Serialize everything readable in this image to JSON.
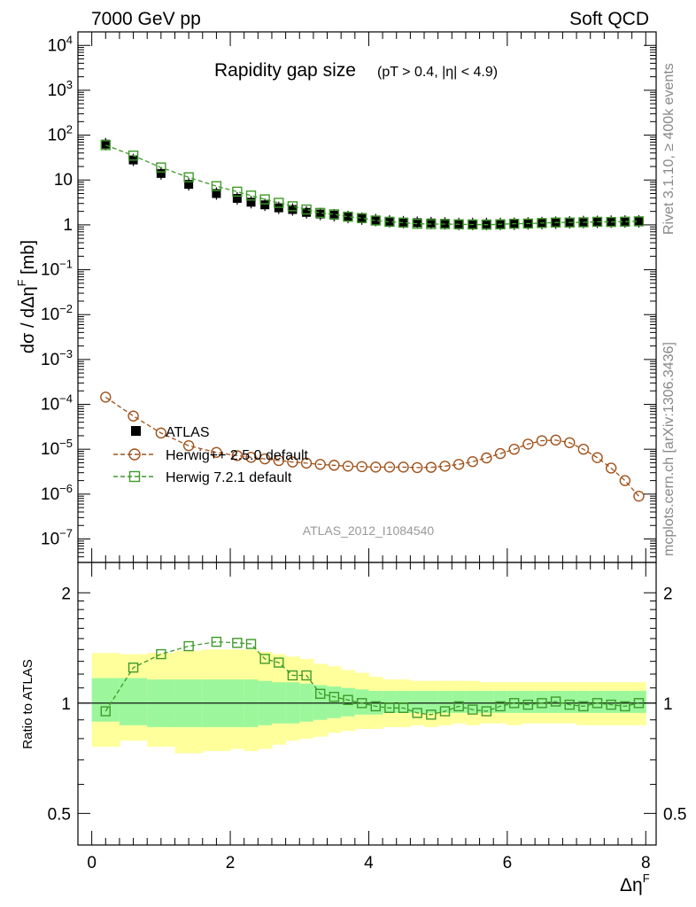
{
  "header": {
    "left": "7000 GeV pp",
    "right": "Soft QCD"
  },
  "side_labels": {
    "rivet": "Rivet 3.1.10, ≥ 400k events",
    "mcplots": "mcplots.cern.ch [arXiv:1306.3436]"
  },
  "colors": {
    "atlas": "#000000",
    "herwigpp": "#a0521b",
    "herwig7": "#3f9a2a",
    "band_inner": "#9cf79c",
    "band_outer": "#ffff9c"
  },
  "chart_data": [
    {
      "type": "scatter",
      "title": "Rapidity gap size",
      "subtitle": "(pT > 0.4, |η| < 4.9)",
      "ylabel": "dσ / dΔηF [mb]",
      "xlabel": "ΔηF",
      "yscale": "log",
      "xlim": [
        -0.2,
        8.15
      ],
      "ylim": [
        3e-08,
        20000
      ],
      "ytick_labels": [
        "10^4",
        "10^3",
        "10^2",
        "10",
        "1",
        "10^-1",
        "10^-2",
        "10^-3",
        "10^-4",
        "10^-5",
        "10^-6",
        "10^-7"
      ],
      "analysis_label": "ATLAS_2012_I1084540",
      "legend": [
        "ATLAS",
        "Herwig++ 2.5.0 default",
        "Herwig 7.2.1 default"
      ],
      "legend_position": "lower-left",
      "x": [
        0.2,
        0.6,
        1.0,
        1.4,
        1.8,
        2.1,
        2.3,
        2.5,
        2.7,
        2.9,
        3.1,
        3.3,
        3.5,
        3.7,
        3.9,
        4.1,
        4.3,
        4.5,
        4.7,
        4.9,
        5.1,
        5.3,
        5.5,
        5.7,
        5.9,
        6.1,
        6.3,
        6.5,
        6.7,
        6.9,
        7.1,
        7.3,
        7.5,
        7.7,
        7.9
      ],
      "series": [
        {
          "name": "ATLAS",
          "marker": "filled-square",
          "values": [
            63,
            28,
            14,
            8,
            5,
            3.9,
            3.2,
            2.8,
            2.4,
            2.2,
            1.9,
            1.75,
            1.65,
            1.5,
            1.38,
            1.28,
            1.2,
            1.15,
            1.12,
            1.1,
            1.08,
            1.05,
            1.05,
            1.05,
            1.05,
            1.06,
            1.08,
            1.1,
            1.12,
            1.14,
            1.16,
            1.17,
            1.18,
            1.19,
            1.2
          ]
        },
        {
          "name": "Herwig++ 2.5.0 default",
          "marker": "open-circle",
          "line": "dashed",
          "values": [
            0.000145,
            5.5e-05,
            2.3e-05,
            1.2e-05,
            8.5e-06,
            7.2e-06,
            6.6e-06,
            6.1e-06,
            5.6e-06,
            5.2e-06,
            4.9e-06,
            4.6e-06,
            4.4e-06,
            4.2e-06,
            4.1e-06,
            4e-06,
            4e-06,
            4e-06,
            3.9e-06,
            3.95e-06,
            4.2e-06,
            4.6e-06,
            5.3e-06,
            6.4e-06,
            8e-06,
            1e-05,
            1.3e-05,
            1.55e-05,
            1.6e-05,
            1.4e-05,
            1e-05,
            6.5e-06,
            3.8e-06,
            2e-06,
            9e-07
          ]
        },
        {
          "name": "Herwig 7.2.1 default",
          "marker": "open-square",
          "line": "dashed",
          "values": [
            60,
            35,
            19,
            11.5,
            7.3,
            5.5,
            4.5,
            3.7,
            3.1,
            2.6,
            2.2,
            1.85,
            1.72,
            1.52,
            1.42,
            1.25,
            1.17,
            1.12,
            1.06,
            1.04,
            1.04,
            1.03,
            1.02,
            1.01,
            1.03,
            1.06,
            1.07,
            1.1,
            1.13,
            1.13,
            1.14,
            1.17,
            1.16,
            1.18,
            1.2
          ]
        }
      ]
    },
    {
      "type": "scatter",
      "ylabel": "Ratio to ATLAS",
      "xlabel": "ΔηF",
      "yscale": "log",
      "xlim": [
        -0.2,
        8.15
      ],
      "ylim": [
        0.41,
        2.42
      ],
      "ytick_labels": [
        "2",
        "1",
        "0.5"
      ],
      "xtick_labels": [
        "0",
        "2",
        "4",
        "6",
        "8"
      ],
      "x": [
        0.2,
        0.6,
        1.0,
        1.4,
        1.8,
        2.1,
        2.3,
        2.5,
        2.7,
        2.9,
        3.1,
        3.3,
        3.5,
        3.7,
        3.9,
        4.1,
        4.3,
        4.5,
        4.7,
        4.9,
        5.1,
        5.3,
        5.5,
        5.7,
        5.9,
        6.1,
        6.3,
        6.5,
        6.7,
        6.9,
        7.1,
        7.3,
        7.5,
        7.7,
        7.9
      ],
      "bands": {
        "edges": [
          0,
          0.4,
          0.8,
          1.2,
          1.6,
          2.0,
          2.2,
          2.4,
          2.6,
          2.8,
          3.0,
          3.2,
          3.4,
          3.6,
          3.8,
          4.0,
          4.2,
          4.4,
          4.6,
          4.8,
          5.0,
          5.2,
          5.4,
          5.6,
          5.8,
          6.0,
          6.2,
          6.4,
          6.6,
          6.8,
          7.0,
          7.2,
          7.4,
          7.6,
          7.8,
          8.0
        ],
        "inner_lo": [
          0.89,
          0.87,
          0.86,
          0.86,
          0.86,
          0.86,
          0.86,
          0.87,
          0.88,
          0.88,
          0.89,
          0.9,
          0.91,
          0.92,
          0.93,
          0.93,
          0.94,
          0.94,
          0.94,
          0.94,
          0.94,
          0.94,
          0.94,
          0.94,
          0.94,
          0.94,
          0.94,
          0.94,
          0.94,
          0.94,
          0.94,
          0.94,
          0.94,
          0.94,
          0.94
        ],
        "inner_hi": [
          1.17,
          1.17,
          1.16,
          1.16,
          1.16,
          1.16,
          1.16,
          1.15,
          1.14,
          1.14,
          1.13,
          1.12,
          1.11,
          1.1,
          1.09,
          1.08,
          1.08,
          1.08,
          1.08,
          1.08,
          1.08,
          1.08,
          1.08,
          1.08,
          1.08,
          1.08,
          1.08,
          1.08,
          1.08,
          1.08,
          1.08,
          1.08,
          1.08,
          1.08,
          1.08
        ],
        "outer_lo": [
          0.76,
          0.79,
          0.76,
          0.73,
          0.74,
          0.75,
          0.74,
          0.75,
          0.77,
          0.79,
          0.8,
          0.81,
          0.83,
          0.84,
          0.85,
          0.85,
          0.86,
          0.86,
          0.87,
          0.86,
          0.87,
          0.88,
          0.87,
          0.88,
          0.88,
          0.87,
          0.88,
          0.88,
          0.88,
          0.88,
          0.87,
          0.87,
          0.87,
          0.87,
          0.87
        ],
        "outer_hi": [
          1.37,
          1.36,
          1.37,
          1.39,
          1.4,
          1.4,
          1.4,
          1.38,
          1.36,
          1.34,
          1.32,
          1.28,
          1.26,
          1.23,
          1.21,
          1.18,
          1.16,
          1.16,
          1.15,
          1.15,
          1.15,
          1.15,
          1.15,
          1.14,
          1.14,
          1.14,
          1.14,
          1.14,
          1.14,
          1.14,
          1.14,
          1.14,
          1.14,
          1.14,
          1.14
        ]
      },
      "series": [
        {
          "name": "Herwig 7.2.1 default",
          "marker": "open-square",
          "line": "dashed",
          "values": [
            0.95,
            1.25,
            1.36,
            1.43,
            1.47,
            1.46,
            1.45,
            1.32,
            1.29,
            1.19,
            1.19,
            1.06,
            1.04,
            1.02,
            1.0,
            0.98,
            0.97,
            0.97,
            0.94,
            0.93,
            0.95,
            0.98,
            0.96,
            0.95,
            0.98,
            1.0,
            0.99,
            1.0,
            1.01,
            0.99,
            0.98,
            1.0,
            0.99,
            0.98,
            1.0
          ]
        }
      ]
    }
  ]
}
